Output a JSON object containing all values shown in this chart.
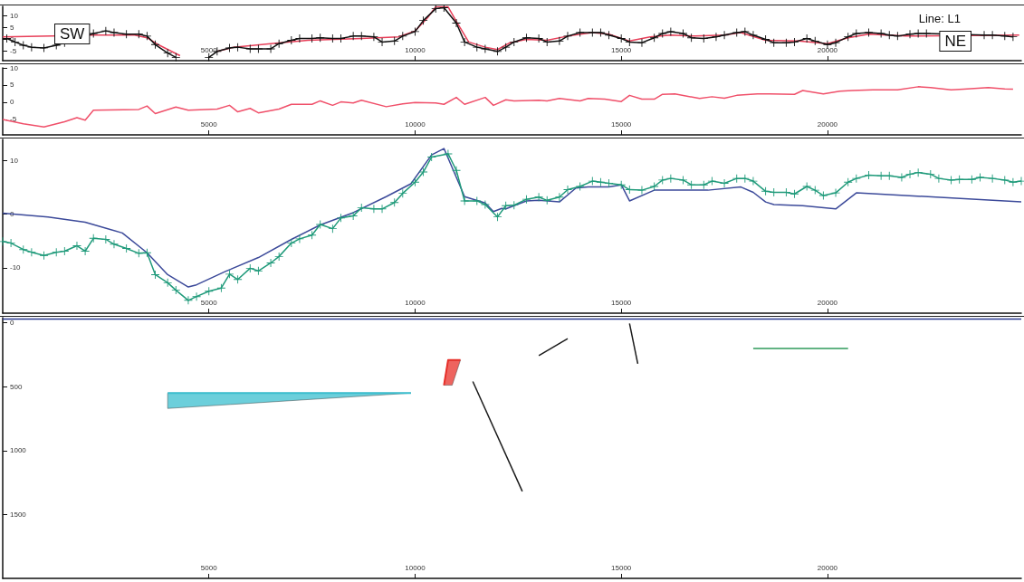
{
  "chart_data": [
    {
      "type": "line",
      "xlim": [
        0,
        24700
      ],
      "xticks": [
        5000,
        10000,
        15000,
        20000
      ],
      "ylim": [
        -9,
        14
      ],
      "yticks": [
        -5,
        0,
        5,
        10
      ],
      "annotations": [
        "SW",
        "NE",
        "Line: L1"
      ],
      "series": [
        {
          "color": "#e8405a",
          "marker": "none",
          "x": [
            0,
            1200,
            2200,
            3200,
            3500,
            3800,
            4300,
            4500,
            4800,
            5200,
            5600,
            6500,
            7400,
            8700,
            9600,
            10000,
            10300,
            10500,
            10800,
            11000,
            11300,
            11700,
            12000,
            12300,
            12700,
            13200,
            13700,
            14300,
            14700,
            15200,
            15700,
            16200,
            16800,
            17500,
            17900,
            18500,
            19300,
            20000,
            20500,
            21000,
            21900,
            24650
          ],
          "values": [
            1.1,
            1.4,
            1.8,
            1.8,
            0.7,
            -2.5,
            -6.9,
            null,
            null,
            -5.1,
            -3.3,
            -1.8,
            -0.4,
            0.4,
            1.1,
            3.6,
            9.1,
            13.8,
            13.8,
            7.6,
            -1.1,
            -3.3,
            -4.3,
            -1.4,
            0,
            -0.4,
            1.4,
            2.9,
            2.2,
            -0.7,
            1.1,
            1.8,
            1.4,
            1.8,
            2.9,
            -0.4,
            -0.7,
            -1.8,
            0.7,
            2.2,
            1.4,
            1.8
          ]
        },
        {
          "color": "#111111",
          "marker": "cross",
          "x": [
            100,
            300,
            500,
            700,
            1000,
            1300,
            1500,
            2200,
            2500,
            2700,
            3000,
            3300,
            3500,
            3700,
            4000,
            4200,
            4500,
            4700,
            5000,
            5200,
            5500,
            5700,
            6000,
            6200,
            6500,
            6700,
            7000,
            7200,
            7500,
            7700,
            8000,
            8200,
            8500,
            8700,
            9000,
            9200,
            9500,
            9700,
            10000,
            10200,
            10500,
            10700,
            11000,
            11200,
            11500,
            11700,
            12000,
            12200,
            12400,
            12700,
            13000,
            13200,
            13500,
            13700,
            14000,
            14300,
            14500,
            14700,
            15000,
            15200,
            15500,
            15800,
            16000,
            16200,
            16500,
            16700,
            17000,
            17300,
            17500,
            17800,
            18000,
            18200,
            18500,
            18700,
            19000,
            19200,
            19500,
            19700,
            20000,
            20200,
            20500,
            20700,
            21000,
            21300,
            21500,
            21700,
            22000,
            22200,
            22400,
            23800,
            24000,
            24300,
            24500
          ],
          "values": [
            0.4,
            -1.1,
            -2.5,
            -3.3,
            -3.6,
            -2.5,
            -1.4,
            2.5,
            3.6,
            2.9,
            2.2,
            2.2,
            1.4,
            -2.2,
            -5.8,
            -7.6,
            null,
            null,
            -7.6,
            -5.1,
            -3.6,
            -3.3,
            -4,
            -4,
            -4,
            -1.8,
            -0.4,
            0.4,
            0.4,
            0.7,
            0.4,
            0.4,
            1.4,
            1.4,
            1.1,
            -1.1,
            -0.7,
            1.4,
            3.3,
            8,
            13,
            13.4,
            6.9,
            -1.1,
            -3.3,
            -4,
            -5.1,
            -3.3,
            -1.1,
            0.7,
            0.4,
            -1.1,
            -0.7,
            1.4,
            2.9,
            2.9,
            2.9,
            1.8,
            0.4,
            -1.1,
            -1.4,
            0.7,
            2.5,
            3.3,
            2.5,
            0.7,
            0.4,
            1.1,
            1.8,
            2.9,
            3.3,
            1.8,
            0,
            -1.4,
            -1.4,
            -1.1,
            0.4,
            -0.7,
            -2.2,
            -1.4,
            1.1,
            2.5,
            2.9,
            2.5,
            1.8,
            1.4,
            2.2,
            2.5,
            2.5,
            1.8,
            1.8,
            1.4,
            1.1
          ]
        }
      ]
    },
    {
      "type": "line",
      "xlim": [
        0,
        24700
      ],
      "xticks": [
        5000,
        10000,
        15000,
        20000
      ],
      "ylim": [
        -9.5,
        10
      ],
      "yticks": [
        -5,
        0,
        5,
        10
      ],
      "series": [
        {
          "color": "#f0506a",
          "marker": "none",
          "x": [
            0,
            500,
            1000,
            1500,
            1800,
            2000,
            2200,
            3300,
            3500,
            3700,
            4200,
            4500,
            5200,
            5500,
            5700,
            6000,
            6200,
            6700,
            7000,
            7500,
            7700,
            8000,
            8200,
            8500,
            8700,
            9300,
            9700,
            10000,
            10500,
            10700,
            11000,
            11200,
            11700,
            11900,
            12200,
            12400,
            13000,
            13200,
            13500,
            14000,
            14200,
            14600,
            15000,
            15200,
            15500,
            15800,
            16000,
            16300,
            16900,
            17200,
            17500,
            17800,
            18300,
            18600,
            19200,
            19400,
            19900,
            20300,
            20600,
            21100,
            21700,
            22200,
            22500,
            23000,
            23300,
            23900,
            24300,
            24500
          ],
          "values": [
            -5,
            -6.3,
            -7.2,
            -5.7,
            -4.5,
            -5.2,
            -2.3,
            -2.1,
            -1.1,
            -3.3,
            -1.4,
            -2.3,
            -2,
            -0.9,
            -2.8,
            -1.8,
            -3.1,
            -2,
            -0.6,
            -0.6,
            0.4,
            -0.9,
            0.1,
            -0.2,
            0.6,
            -1.3,
            -0.5,
            -0.1,
            -0.2,
            -0.6,
            1.4,
            -0.6,
            1.4,
            -0.9,
            0.7,
            0.4,
            0.6,
            0.4,
            1.1,
            0.4,
            1.1,
            0.9,
            0.2,
            2,
            0.9,
            0.9,
            2.3,
            2.4,
            1.1,
            1.6,
            1.2,
            2,
            2.4,
            2.4,
            2.3,
            3.4,
            2.4,
            3.2,
            3.4,
            3.6,
            3.6,
            4.5,
            4.3,
            3.6,
            3.8,
            4.3,
            3.9,
            3.8
          ]
        }
      ]
    },
    {
      "type": "line",
      "xlim": [
        0,
        24700
      ],
      "xticks": [
        5000,
        10000,
        15000,
        20000
      ],
      "ylim": [
        -18.5,
        14
      ],
      "yticks": [
        -10,
        0,
        10
      ],
      "series": [
        {
          "color": "#3c4a9a",
          "marker": "none",
          "x": [
            0,
            1100,
            2000,
            2900,
            3500,
            4000,
            4500,
            4700,
            5400,
            6200,
            7000,
            7700,
            8500,
            9300,
            9900,
            10400,
            10700,
            11200,
            11700,
            11900,
            12100,
            12200,
            12700,
            13000,
            13500,
            13900,
            14200,
            14700,
            15000,
            15200,
            15800,
            17100,
            17900,
            18200,
            18500,
            18700,
            19400,
            20200,
            20700,
            24300,
            24700
          ],
          "values": [
            0.2,
            -0.5,
            -1.5,
            -3.5,
            -7.2,
            -11.3,
            -13.6,
            -13.2,
            -10.7,
            -8.1,
            -4.7,
            -2,
            0.3,
            3.3,
            5.7,
            11.1,
            12.3,
            3.3,
            2.1,
            0.5,
            1.1,
            1,
            2.5,
            2.6,
            2.3,
            4.9,
            5.1,
            5.1,
            5.5,
            2.5,
            4.5,
            4.5,
            5.1,
            4.1,
            2.3,
            1.8,
            1.6,
            1,
            4,
            2.5,
            2.3
          ]
        },
        {
          "color": "#1f9a7a",
          "marker": "cross",
          "x": [
            0,
            200,
            500,
            700,
            1000,
            1300,
            1500,
            1800,
            2000,
            2200,
            2500,
            2700,
            3000,
            3300,
            3500,
            3700,
            4000,
            4200,
            4500,
            4700,
            5000,
            5300,
            5500,
            5700,
            6000,
            6200,
            6500,
            6700,
            7000,
            7200,
            7500,
            7700,
            8000,
            8200,
            8500,
            8700,
            9000,
            9200,
            9500,
            9700,
            10000,
            10200,
            10400,
            10800,
            11000,
            11200,
            11500,
            11700,
            12000,
            12200,
            12400,
            12700,
            13000,
            13200,
            13500,
            13700,
            14000,
            14300,
            14500,
            14700,
            15000,
            15200,
            15500,
            15800,
            16000,
            16200,
            16500,
            16700,
            17000,
            17200,
            17500,
            17800,
            18000,
            18200,
            18500,
            18700,
            19000,
            19200,
            19500,
            19700,
            19900,
            20200,
            20500,
            20700,
            21000,
            21300,
            21500,
            21800,
            22000,
            22200,
            22500,
            22700,
            23000,
            23200,
            23500,
            23700,
            24000,
            24300,
            24500,
            24700
          ],
          "values": [
            -5.1,
            -5.4,
            -6.6,
            -7.1,
            -7.7,
            -7.1,
            -6.9,
            -5.9,
            -6.9,
            -4.5,
            -4.7,
            -5.6,
            -6.4,
            -7.3,
            -7.2,
            -11.3,
            -12.8,
            -14.2,
            -16.1,
            -15.4,
            -14.4,
            -13.8,
            -11.2,
            -12.2,
            -10.1,
            -10.6,
            -9.1,
            -7.9,
            -5.4,
            -4.6,
            -3.9,
            -1.9,
            -2.7,
            -0.7,
            -0.3,
            1.2,
            1,
            1,
            2.2,
            3.9,
            6,
            7.9,
            10.7,
            11.3,
            8.2,
            2.5,
            2.5,
            1.8,
            -0.5,
            1.6,
            1.7,
            2.8,
            3.2,
            2.6,
            3.2,
            4.6,
            5.2,
            6.2,
            6,
            5.8,
            5.5,
            4.6,
            4.5,
            5.2,
            6.4,
            6.7,
            6.4,
            5.5,
            5.5,
            6.2,
            5.8,
            6.7,
            6.7,
            6.2,
            4.3,
            4.1,
            4.1,
            3.8,
            5.2,
            4.5,
            3.5,
            4,
            6,
            6.7,
            7.3,
            7.2,
            7.2,
            6.9,
            7.5,
            7.8,
            7.5,
            6.7,
            6.4,
            6.5,
            6.5,
            6.9,
            6.7,
            6.4,
            6,
            6.2
          ]
        }
      ]
    },
    {
      "type": "line",
      "xlim": [
        0,
        24700
      ],
      "xticks": [
        5000,
        10000,
        15000,
        20000
      ],
      "ylim": [
        2000,
        -40
      ],
      "yticks": [
        0,
        500,
        1000,
        1500
      ],
      "series": [
        {
          "color": "#2b3a8f",
          "marker": "none",
          "x": [
            0,
            24700
          ],
          "values": [
            -30,
            -30
          ]
        },
        {
          "color": "#3bbfcf",
          "marker": "none",
          "x": [
            4000,
            9900
          ],
          "values": [
            550,
            550
          ],
          "lower": [
            670,
            550
          ],
          "upper": [
            550,
            550
          ]
        },
        {
          "color": "#e8302a",
          "marker": "none",
          "x": [
            10700,
            10800,
            10900,
            11100
          ],
          "values": [
            488,
            292,
            292,
            292
          ],
          "lower": [
            488,
            488,
            488,
            292
          ],
          "upper": [
            488,
            292,
            292,
            292
          ]
        },
        {
          "color": "#1a1a1a",
          "marker": "none",
          "x": [
            11400,
            12600
          ],
          "values": [
            459,
            1319
          ]
        },
        {
          "color": "#1a1a1a",
          "marker": "none",
          "x": [
            13000,
            13700
          ],
          "values": [
            257,
            124
          ]
        },
        {
          "color": "#1a1a1a",
          "marker": "none",
          "x": [
            15200,
            15400
          ],
          "values": [
            5,
            320
          ]
        },
        {
          "color": "#2e9a5a",
          "marker": "none",
          "x": [
            18200,
            20500
          ],
          "values": [
            200,
            200
          ]
        }
      ]
    }
  ]
}
